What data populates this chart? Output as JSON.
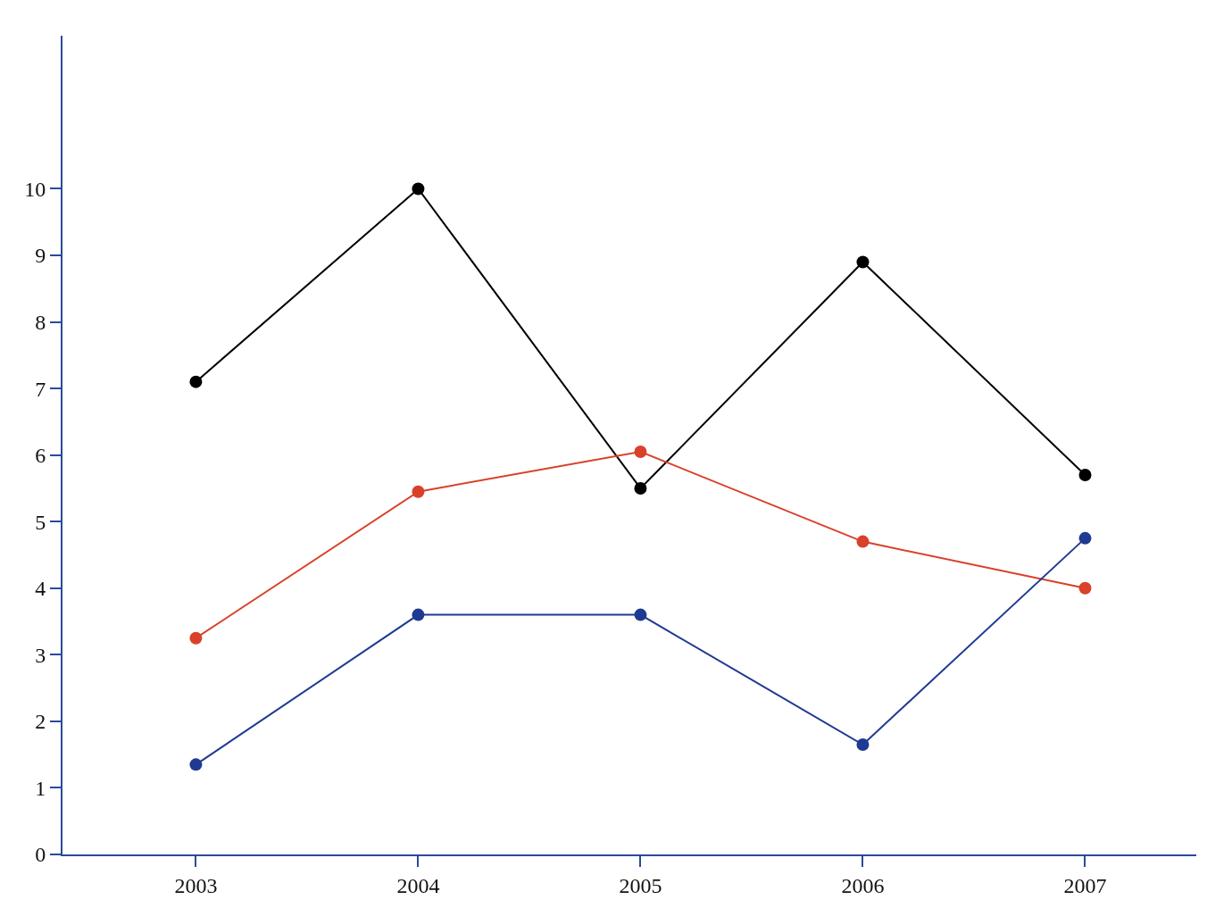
{
  "chart_data": {
    "type": "line",
    "categories": [
      "2003",
      "2004",
      "2005",
      "2006",
      "2007"
    ],
    "series": [
      {
        "color": "#000000",
        "values": [
          7.1,
          10.0,
          5.5,
          8.9,
          5.7
        ]
      },
      {
        "color": "#d9412b",
        "values": [
          3.25,
          5.45,
          6.05,
          4.7,
          4.0
        ]
      },
      {
        "color": "#1f3a93",
        "values": [
          1.35,
          3.6,
          3.6,
          1.65,
          4.75
        ]
      }
    ],
    "ylim": [
      0,
      12.3
    ],
    "yticks": [
      0,
      1,
      2,
      3,
      4,
      5,
      6,
      7,
      8,
      9,
      10
    ],
    "marker": "circle",
    "line_style": "solid"
  }
}
